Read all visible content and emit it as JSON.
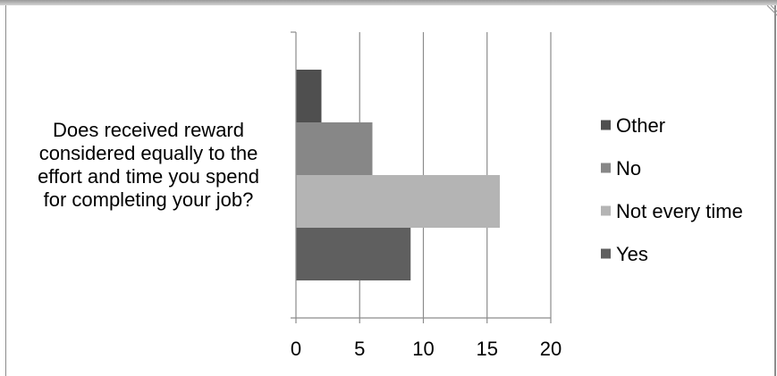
{
  "chart_data": {
    "type": "bar",
    "orientation": "horizontal",
    "categories": [
      "Does received reward considered equally to the effort and time you spend for completing your job?"
    ],
    "category_label_lines": [
      "Does received reward",
      "considered equally to the",
      "effort and time you spend",
      "for completing your job?"
    ],
    "series": [
      {
        "name": "Yes",
        "values": [
          9
        ],
        "color": "#5f5f5f"
      },
      {
        "name": "Not every time",
        "values": [
          16
        ],
        "color": "#b4b4b4"
      },
      {
        "name": "No",
        "values": [
          6
        ],
        "color": "#878787"
      },
      {
        "name": "Other",
        "values": [
          2
        ],
        "color": "#4f4f4f"
      }
    ],
    "xlim": [
      0,
      20
    ],
    "xticks": [
      "0",
      "5",
      "10",
      "15",
      "20"
    ],
    "grid": true,
    "legend_position": "right",
    "legend_order": [
      "Other",
      "No",
      "Not every time",
      "Yes"
    ],
    "title": "",
    "xlabel": "",
    "ylabel": ""
  }
}
